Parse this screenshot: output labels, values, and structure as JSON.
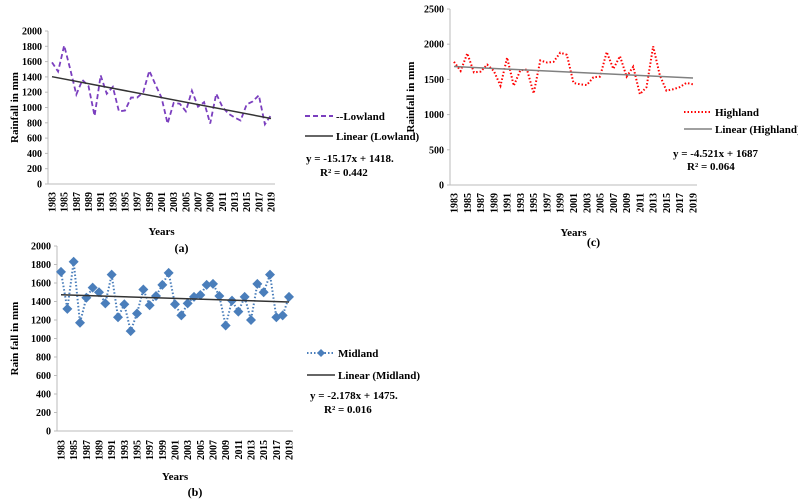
{
  "chart_data": [
    {
      "id": "a",
      "type": "line",
      "panel_label": "(a)",
      "xlabel": "Years",
      "ylabel": "Rainfall in mm",
      "ylim": [
        0,
        2000
      ],
      "yticks": [
        0,
        200,
        400,
        600,
        800,
        1000,
        1200,
        1400,
        1600,
        1800,
        2000
      ],
      "x_tick_labels": [
        "1983",
        "1985",
        "1987",
        "1989",
        "1991",
        "1993",
        "1995",
        "1997",
        "1999",
        "2001",
        "2003",
        "2005",
        "2007",
        "2009",
        "2011",
        "2013",
        "2015",
        "2017",
        "2019"
      ],
      "grid": false,
      "legend_position": "right",
      "x": [
        1983,
        1984,
        1985,
        1986,
        1987,
        1988,
        1989,
        1990,
        1991,
        1992,
        1993,
        1994,
        1995,
        1996,
        1997,
        1998,
        1999,
        2000,
        2001,
        2002,
        2003,
        2004,
        2005,
        2006,
        2007,
        2008,
        2009,
        2010,
        2011,
        2012,
        2013,
        2014,
        2015,
        2016,
        2017,
        2018,
        2019
      ],
      "series": [
        {
          "name": "Lowland",
          "legend_label": "--Lowland",
          "style": "dashed",
          "color": "#7b3fbf",
          "values": [
            1590,
            1470,
            1810,
            1500,
            1170,
            1360,
            1280,
            890,
            1420,
            1180,
            1270,
            950,
            960,
            1130,
            1130,
            1200,
            1480,
            1300,
            1130,
            790,
            1060,
            1050,
            950,
            1220,
            1010,
            1070,
            790,
            1180,
            1010,
            920,
            870,
            830,
            1040,
            1080,
            1160,
            780,
            900
          ]
        },
        {
          "name": "Linear (Lowland)",
          "legend_label": "Linear (Lowland)",
          "style": "trend",
          "color": "#333333",
          "slope": -15.17,
          "intercept": 1418
        }
      ],
      "equation": "y = -15.17x + 1418.",
      "r2": "R² = 0.442"
    },
    {
      "id": "c",
      "type": "line",
      "panel_label": "(c)",
      "xlabel": "Years",
      "ylabel": "Rainfall in mm",
      "ylim": [
        0,
        2500
      ],
      "yticks": [
        0,
        500,
        1000,
        1500,
        2000,
        2500
      ],
      "x_tick_labels": [
        "1983",
        "1985",
        "1987",
        "1989",
        "1991",
        "1993",
        "1995",
        "1997",
        "1999",
        "2001",
        "2003",
        "2005",
        "2007",
        "2009",
        "2011",
        "2013",
        "2015",
        "2017",
        "2019"
      ],
      "grid": false,
      "legend_position": "right",
      "x": [
        1983,
        1984,
        1985,
        1986,
        1987,
        1988,
        1989,
        1990,
        1991,
        1992,
        1993,
        1994,
        1995,
        1996,
        1997,
        1998,
        1999,
        2000,
        2001,
        2002,
        2003,
        2004,
        2005,
        2006,
        2007,
        2008,
        2009,
        2010,
        2011,
        2012,
        2013,
        2014,
        2015,
        2016,
        2017,
        2018,
        2019
      ],
      "series": [
        {
          "name": "Highland",
          "legend_label": "Highland",
          "style": "dotted",
          "color": "#ff0000",
          "values": [
            1750,
            1620,
            1870,
            1600,
            1610,
            1710,
            1620,
            1410,
            1810,
            1410,
            1630,
            1640,
            1300,
            1770,
            1740,
            1750,
            1880,
            1850,
            1450,
            1430,
            1420,
            1530,
            1540,
            1890,
            1650,
            1830,
            1540,
            1680,
            1290,
            1390,
            1970,
            1560,
            1340,
            1360,
            1390,
            1450,
            1430
          ]
        },
        {
          "name": "Linear (Highland)",
          "legend_label": "Linear (Highland)",
          "style": "trend",
          "color": "#808080",
          "slope": -4.521,
          "intercept": 1687
        }
      ],
      "equation": "y = -4.521x + 1687",
      "r2": "R² = 0.064"
    },
    {
      "id": "b",
      "type": "line",
      "panel_label": "(b)",
      "xlabel": "Years",
      "ylabel": "Rain fall in mm",
      "ylim": [
        0,
        2000
      ],
      "yticks": [
        0,
        200,
        400,
        600,
        800,
        1000,
        1200,
        1400,
        1600,
        1800,
        2000
      ],
      "x_tick_labels": [
        "1983",
        "1985",
        "1987",
        "1989",
        "1991",
        "1993",
        "1995",
        "1997",
        "1999",
        "2001",
        "2003",
        "2005",
        "2007",
        "2009",
        "2011",
        "2013",
        "2015",
        "2017",
        "2019"
      ],
      "grid": false,
      "legend_position": "right",
      "x": [
        1983,
        1984,
        1985,
        1986,
        1987,
        1988,
        1989,
        1990,
        1991,
        1992,
        1993,
        1994,
        1995,
        1996,
        1997,
        1998,
        1999,
        2000,
        2001,
        2002,
        2003,
        2004,
        2005,
        2006,
        2007,
        2008,
        2009,
        2010,
        2011,
        2012,
        2013,
        2014,
        2015,
        2016,
        2017,
        2018,
        2019
      ],
      "series": [
        {
          "name": "Midland",
          "legend_label": "Midland",
          "style": "dotted-diamond",
          "color": "#4a7ebb",
          "values": [
            1720,
            1320,
            1830,
            1170,
            1440,
            1550,
            1500,
            1380,
            1690,
            1230,
            1370,
            1080,
            1270,
            1530,
            1360,
            1460,
            1580,
            1710,
            1370,
            1250,
            1380,
            1450,
            1470,
            1580,
            1590,
            1460,
            1140,
            1410,
            1290,
            1450,
            1200,
            1590,
            1500,
            1690,
            1230,
            1250,
            1450
          ]
        },
        {
          "name": "Linear (Midland)",
          "legend_label": "Linear (Midland)",
          "style": "trend",
          "color": "#333333",
          "slope": -2.178,
          "intercept": 1475
        }
      ],
      "equation": "y = -2.178x + 1475.",
      "r2": "R² = 0.016"
    }
  ]
}
